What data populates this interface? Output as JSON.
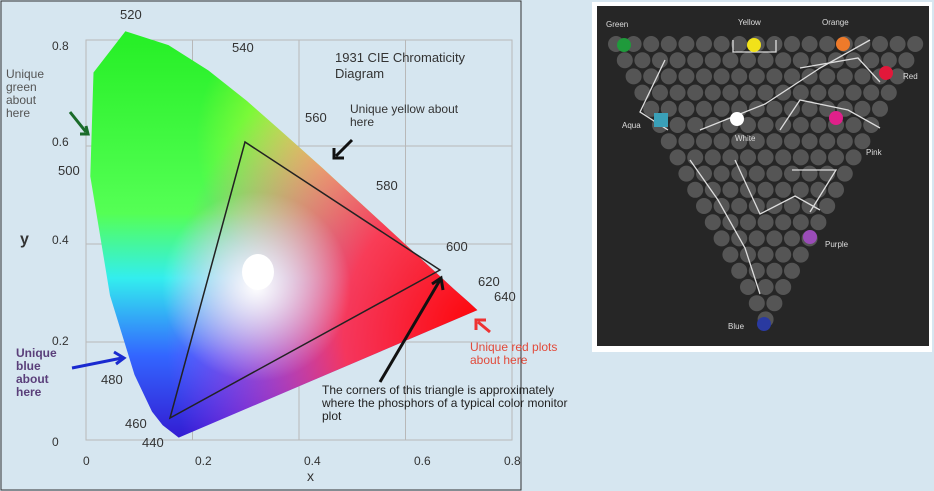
{
  "cie_diagram": {
    "title": "1931 CIE Chromaticity Diagram",
    "x_label": "x",
    "y_label": "y",
    "x_ticks": [
      "0",
      "0.2",
      "0.4",
      "0.6",
      "0.8"
    ],
    "y_ticks": [
      "0",
      "0.2",
      "0.4",
      "0.6",
      "0.8"
    ],
    "wavelengths": [
      "520",
      "540",
      "560",
      "580",
      "600",
      "620",
      "640",
      "500",
      "480",
      "460",
      "440"
    ],
    "annotations": [
      "Unique green about here",
      "Unique yellow about here",
      "Unique blue about here",
      "Unique red plots about here",
      "The corners of this triangle is approximately where the phosphors of a typical color monitor plot"
    ]
  },
  "color_grid": {
    "labels": [
      "Green",
      "Yellow",
      "Orange",
      "Red",
      "Aqua",
      "White",
      "Pink",
      "Purple",
      "Blue"
    ]
  }
}
